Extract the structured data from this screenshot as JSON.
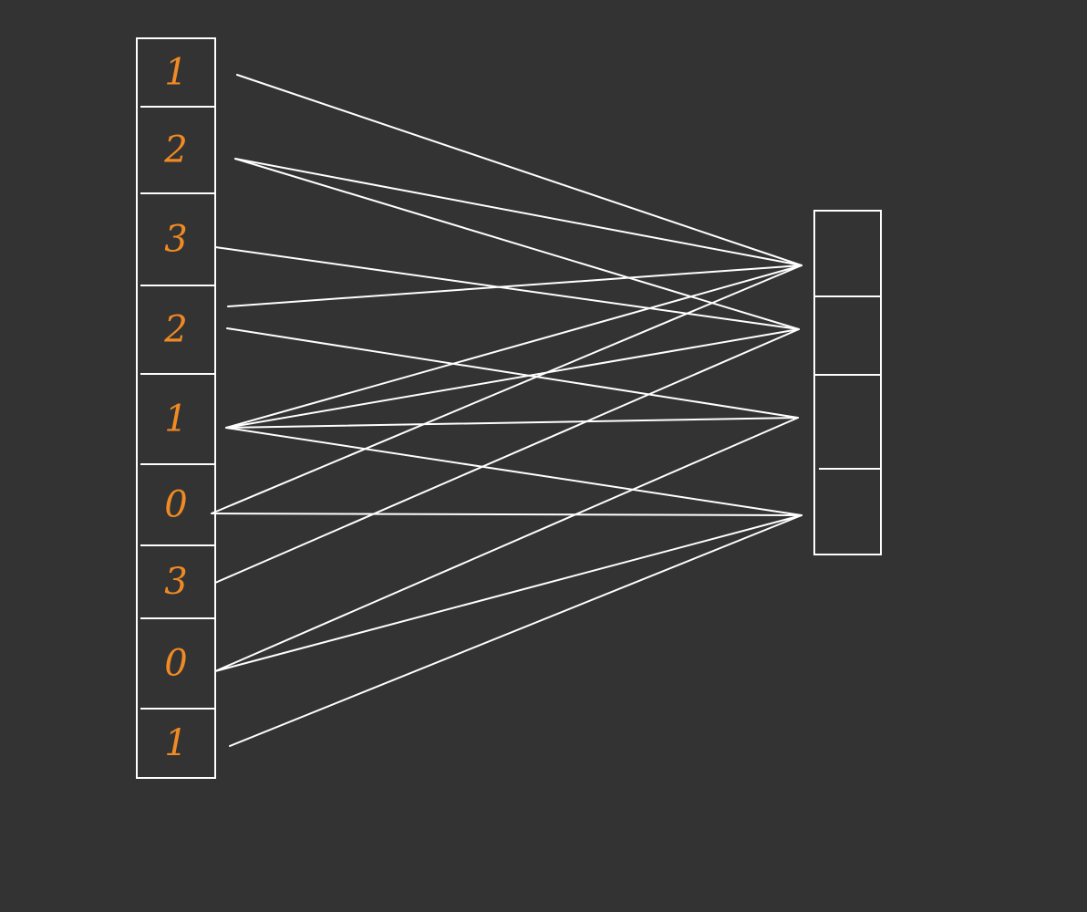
{
  "background_color": "#333333",
  "stroke_color": "#ffffff",
  "digit_color": "#f08a24",
  "left_array": {
    "values": [
      "1",
      "2",
      "3",
      "2",
      "1",
      "0",
      "3",
      "0",
      "1"
    ]
  },
  "right_array": {
    "cell_count": 4
  },
  "connections": [
    {
      "from": 0,
      "to": 0
    },
    {
      "from": 1,
      "to": 0
    },
    {
      "from": 1,
      "to": 1
    },
    {
      "from": 2,
      "to": 1
    },
    {
      "from": 3,
      "to": 0
    },
    {
      "from": 3,
      "to": 2
    },
    {
      "from": 4,
      "to": 0
    },
    {
      "from": 4,
      "to": 1
    },
    {
      "from": 4,
      "to": 2
    },
    {
      "from": 4,
      "to": 3
    },
    {
      "from": 5,
      "to": 0
    },
    {
      "from": 5,
      "to": 3
    },
    {
      "from": 6,
      "to": 1
    },
    {
      "from": 7,
      "to": 2
    },
    {
      "from": 7,
      "to": 3
    },
    {
      "from": 8,
      "to": 3
    }
  ]
}
